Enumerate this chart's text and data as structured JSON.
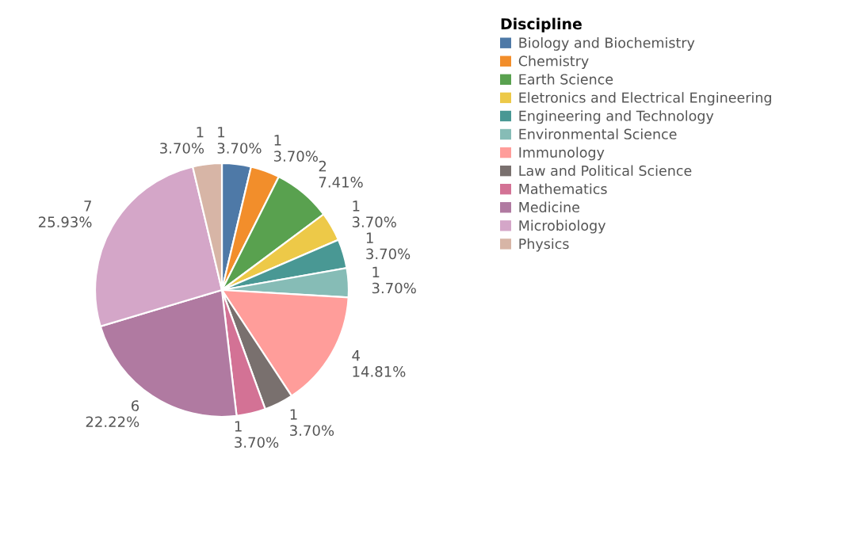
{
  "chart_data": {
    "type": "pie",
    "legend_title": "Discipline",
    "legend": "top right",
    "categories": [
      "Biology and Biochemistry",
      "Chemistry",
      "Earth Science",
      "Eletronics and Electrical Engineering",
      "Engineering and Technology",
      "Environmental Science",
      "Immunology",
      "Law and Political Science",
      "Mathematics",
      "Medicine",
      "Microbiology",
      "Physics"
    ],
    "values": [
      1,
      1,
      2,
      1,
      1,
      1,
      4,
      1,
      1,
      6,
      7,
      1
    ],
    "value_labels": [
      "1\n3.70%",
      "1\n3.70%",
      "2\n7.41%",
      "1\n3.70%",
      "1\n3.70%",
      "1\n3.70%",
      "4\n14.81%",
      "1\n3.70%",
      "1\n3.70%",
      "6\n22.22%",
      "7\n25.93%",
      "1\n3.70%"
    ],
    "colors": [
      "#4e79a7",
      "#f28e2b",
      "#59a14f",
      "#edc948",
      "#499894",
      "#86bcb6",
      "#ff9d9a",
      "#79706e",
      "#d37295",
      "#b07aa1",
      "#d4a6c8",
      "#d7b5a6"
    ]
  }
}
